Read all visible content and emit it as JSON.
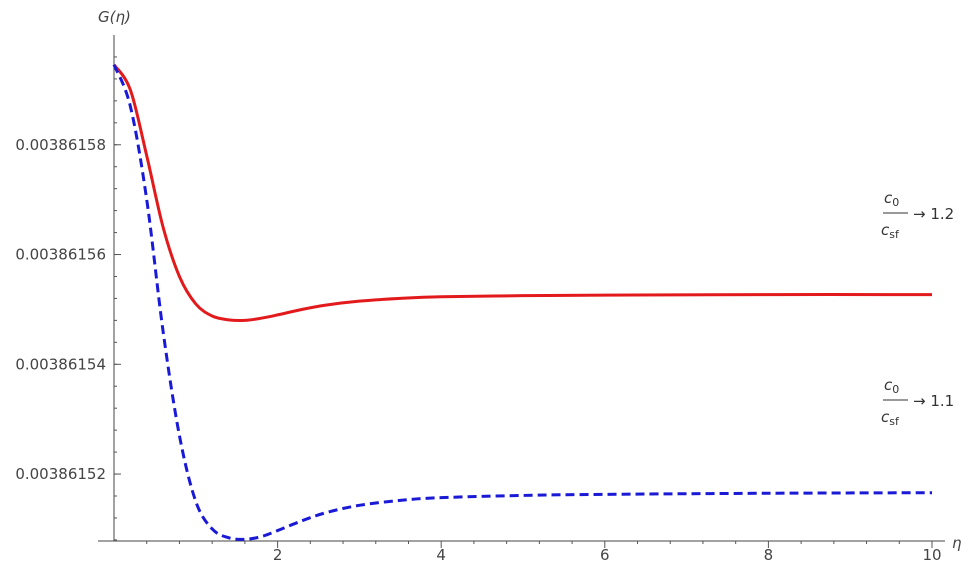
{
  "chart_data": {
    "type": "line",
    "xlabel": "η",
    "ylabel": "G(η)",
    "xlim": [
      0,
      10
    ],
    "ylim": [
      0.0038615078,
      0.0038616
    ],
    "x_ticks": [
      2,
      4,
      6,
      8,
      10
    ],
    "y_ticks": [
      0.00386152,
      0.00386154,
      0.00386156,
      0.00386158
    ],
    "y_tick_labels": [
      "0.00386152",
      "0.00386154",
      "0.00386156",
      "0.00386158"
    ],
    "series": [
      {
        "name": "c0/csf → 1.2",
        "color": "#e31a1c",
        "dash": "solid",
        "label_frac_num": "c",
        "label_frac_num_sub": "0",
        "label_frac_den": "c",
        "label_frac_den_sub": "sf",
        "label_value": "→ 1.2",
        "points": [
          [
            0,
            0.0038615946
          ],
          [
            0.2,
            0.00386159
          ],
          [
            0.4,
            0.003861578
          ],
          [
            0.6,
            0.003861565
          ],
          [
            0.8,
            0.003861556
          ],
          [
            1.0,
            0.003861551
          ],
          [
            1.2,
            0.0038615488
          ],
          [
            1.4,
            0.0038615481
          ],
          [
            1.6,
            0.003861548
          ],
          [
            1.8,
            0.0038615484
          ],
          [
            2.0,
            0.003861549
          ],
          [
            2.3,
            0.00386155
          ],
          [
            2.6,
            0.0038615508
          ],
          [
            3.0,
            0.0038615515
          ],
          [
            3.5,
            0.003861552
          ],
          [
            4.0,
            0.0038615523
          ],
          [
            5.0,
            0.0038615525
          ],
          [
            6.0,
            0.0038615526
          ],
          [
            8.0,
            0.0038615527
          ],
          [
            10.0,
            0.0038615527
          ]
        ]
      },
      {
        "name": "c0/csf → 1.1",
        "color": "#1a1ad6",
        "dash": "dashed",
        "label_frac_num": "c",
        "label_frac_num_sub": "0",
        "label_frac_den": "c",
        "label_frac_den_sub": "sf",
        "label_value": "→ 1.1",
        "points": [
          [
            0,
            0.0038615946
          ],
          [
            0.2,
            0.003861587
          ],
          [
            0.4,
            0.00386157
          ],
          [
            0.6,
            0.003861546
          ],
          [
            0.8,
            0.003861527
          ],
          [
            1.0,
            0.003861515
          ],
          [
            1.2,
            0.00386151
          ],
          [
            1.4,
            0.0038615084
          ],
          [
            1.6,
            0.0038615081
          ],
          [
            1.8,
            0.0038615086
          ],
          [
            2.0,
            0.0038615097
          ],
          [
            2.3,
            0.0038615115
          ],
          [
            2.6,
            0.003861513
          ],
          [
            3.0,
            0.0038615143
          ],
          [
            3.5,
            0.0038615152
          ],
          [
            4.0,
            0.0038615157
          ],
          [
            5.0,
            0.0038615161
          ],
          [
            6.0,
            0.0038615163
          ],
          [
            8.0,
            0.0038615165
          ],
          [
            10.0,
            0.0038615166
          ]
        ]
      }
    ]
  }
}
